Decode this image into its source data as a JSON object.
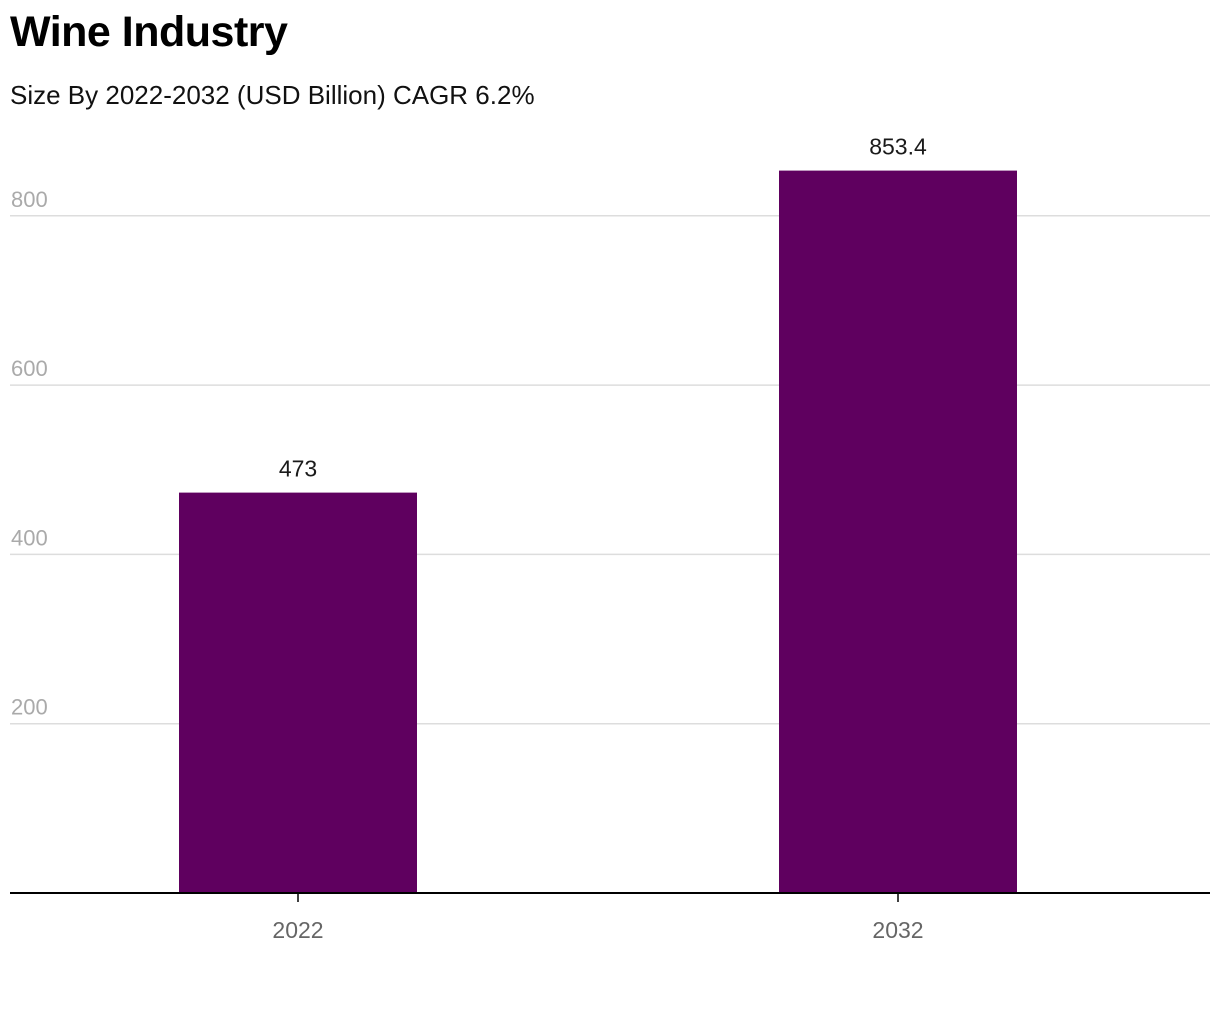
{
  "chart_data": {
    "type": "bar",
    "title": "Wine Industry",
    "subtitle": "Size By 2022-2032 (USD Billion) CAGR 6.2%",
    "categories": [
      "2022",
      "2032"
    ],
    "values": [
      473,
      853.4
    ],
    "value_labels": [
      "473",
      "853.4"
    ],
    "y_ticks": [
      200,
      400,
      600,
      800
    ],
    "ylim": [
      0,
      853.4
    ],
    "grid": true,
    "legend": "none",
    "colors": {
      "bar": "#5f005f",
      "grid": "#dddddd",
      "axis": "#000000"
    }
  }
}
